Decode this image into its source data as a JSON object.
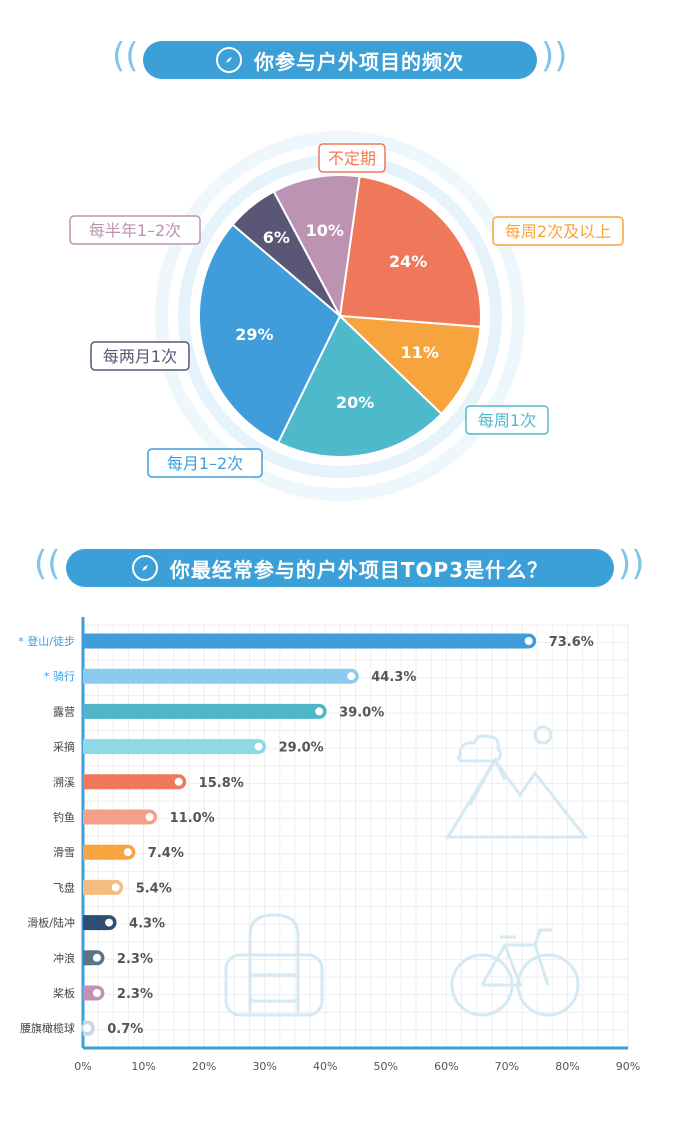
{
  "section1": {
    "title": "你参与户外项目的频次"
  },
  "section2": {
    "title": "你最经常参与的户外项目TOP3是什么？"
  },
  "chart_data": [
    {
      "type": "pie",
      "title": "你参与户外项目的频次",
      "slices": [
        {
          "label": "不定期",
          "value": 24,
          "display": "24%",
          "color": "#f0785a"
        },
        {
          "label": "每周2次及以上",
          "value": 11,
          "display": "11%",
          "color": "#f8a43e"
        },
        {
          "label": "每周1次",
          "value": 20,
          "display": "20%",
          "color": "#4eb9cb"
        },
        {
          "label": "每月1–2次",
          "value": 29,
          "display": "29%",
          "color": "#3f9ddb"
        },
        {
          "label": "每两月1次",
          "value": 6,
          "display": "6%",
          "color": "#5a5776"
        },
        {
          "label": "每半年1–2次",
          "value": 10,
          "display": "10%",
          "color": "#bc93b2"
        }
      ]
    },
    {
      "type": "bar",
      "orientation": "horizontal",
      "title": "你最经常参与的户外项目TOP3是什么？",
      "categories": [
        "* 登山/徒步",
        "* 骑行",
        "露营",
        "采摘",
        "溯溪",
        "钓鱼",
        "滑雪",
        "飞盘",
        "滑板/陆冲",
        "冲浪",
        "桨板",
        "腰旗橄榄球"
      ],
      "values": [
        73.6,
        44.3,
        39.0,
        29.0,
        15.8,
        11.0,
        7.4,
        5.4,
        4.3,
        2.3,
        2.3,
        0.7
      ],
      "value_labels": [
        "73.6%",
        "44.3%",
        "39.0%",
        "29.0%",
        "15.8%",
        "11.0%",
        "7.4%",
        "5.4%",
        "4.3%",
        "2.3%",
        "2.3%",
        "0.7%"
      ],
      "colors": [
        "#3f9ddb",
        "#8ccbef",
        "#4eb6c7",
        "#8fd8e6",
        "#f0785a",
        "#f3a08b",
        "#f8a43e",
        "#f6bd80",
        "#2e4e73",
        "#5a7385",
        "#bf92b4",
        "#c8d6e6"
      ],
      "highlight_color": "#3f9ddb",
      "xlim": [
        0,
        90
      ],
      "xticks": [
        "0%",
        "10%",
        "20%",
        "30%",
        "40%",
        "50%",
        "60%",
        "70%",
        "80%",
        "90%"
      ],
      "grid": true
    }
  ]
}
